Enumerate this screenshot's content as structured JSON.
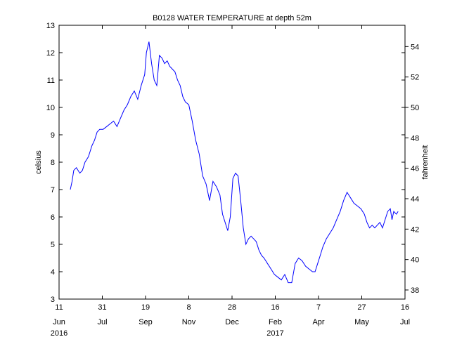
{
  "chart_data": {
    "type": "line",
    "title": "B0128 WATER TEMPERATURE at depth 52m",
    "ylabel_left": "celsius",
    "ylabel_right": "fahrenheit",
    "xlabel": "",
    "ylim": [
      3,
      13
    ],
    "ylim_right_fahrenheit": [
      37.4,
      55.4
    ],
    "x_range": [
      "2016-06-11",
      "2017-07-16"
    ],
    "grid": false,
    "line_color": "#0000ff",
    "y_ticks_left": [
      3,
      4,
      5,
      6,
      7,
      8,
      9,
      10,
      11,
      12,
      13
    ],
    "y_ticks_right": [
      38,
      40,
      42,
      44,
      46,
      48,
      50,
      52,
      54
    ],
    "x_ticks": [
      {
        "date": "2016-06-11",
        "day": "11",
        "month": "Jun",
        "year": "2016"
      },
      {
        "date": "2016-07-31",
        "day": "31",
        "month": "Jul",
        "year": ""
      },
      {
        "date": "2016-09-19",
        "day": "19",
        "month": "Sep",
        "year": ""
      },
      {
        "date": "2016-11-08",
        "day": "8",
        "month": "Nov",
        "year": ""
      },
      {
        "date": "2016-12-28",
        "day": "28",
        "month": "Dec",
        "year": ""
      },
      {
        "date": "2017-02-16",
        "day": "16",
        "month": "Feb",
        "year": "2017"
      },
      {
        "date": "2017-04-07",
        "day": "7",
        "month": "Apr",
        "year": ""
      },
      {
        "date": "2017-05-27",
        "day": "27",
        "month": "May",
        "year": ""
      },
      {
        "date": "2017-07-16",
        "day": "16",
        "month": "Jul",
        "year": ""
      }
    ],
    "series": [
      {
        "name": "",
        "x": [
          "2016-06-24",
          "2016-06-26",
          "2016-06-28",
          "2016-07-01",
          "2016-07-05",
          "2016-07-08",
          "2016-07-11",
          "2016-07-15",
          "2016-07-19",
          "2016-07-22",
          "2016-07-25",
          "2016-07-28",
          "2016-08-01",
          "2016-08-05",
          "2016-08-09",
          "2016-08-13",
          "2016-08-17",
          "2016-08-21",
          "2016-08-25",
          "2016-08-29",
          "2016-09-02",
          "2016-09-06",
          "2016-09-10",
          "2016-09-14",
          "2016-09-18",
          "2016-09-20",
          "2016-09-23",
          "2016-09-26",
          "2016-09-29",
          "2016-10-02",
          "2016-10-05",
          "2016-10-08",
          "2016-10-11",
          "2016-10-14",
          "2016-10-17",
          "2016-10-20",
          "2016-10-23",
          "2016-10-26",
          "2016-10-29",
          "2016-11-01",
          "2016-11-04",
          "2016-11-08",
          "2016-11-12",
          "2016-11-16",
          "2016-11-20",
          "2016-11-24",
          "2016-11-28",
          "2016-12-02",
          "2016-12-06",
          "2016-12-10",
          "2016-12-14",
          "2016-12-17",
          "2016-12-20",
          "2016-12-23",
          "2016-12-26",
          "2016-12-29",
          "2017-01-01",
          "2017-01-04",
          "2017-01-07",
          "2017-01-10",
          "2017-01-13",
          "2017-01-16",
          "2017-01-19",
          "2017-01-22",
          "2017-01-25",
          "2017-01-28",
          "2017-01-31",
          "2017-02-03",
          "2017-02-07",
          "2017-02-11",
          "2017-02-15",
          "2017-02-19",
          "2017-02-23",
          "2017-02-27",
          "2017-03-03",
          "2017-03-07",
          "2017-03-11",
          "2017-03-15",
          "2017-03-19",
          "2017-03-23",
          "2017-03-27",
          "2017-03-31",
          "2017-04-03",
          "2017-04-06",
          "2017-04-09",
          "2017-04-12",
          "2017-04-16",
          "2017-04-20",
          "2017-04-24",
          "2017-04-28",
          "2017-05-02",
          "2017-05-06",
          "2017-05-10",
          "2017-05-14",
          "2017-05-18",
          "2017-05-22",
          "2017-05-26",
          "2017-05-30",
          "2017-06-02",
          "2017-06-05",
          "2017-06-08",
          "2017-06-11",
          "2017-06-14",
          "2017-06-17",
          "2017-06-20",
          "2017-06-23",
          "2017-06-26",
          "2017-06-29",
          "2017-07-01",
          "2017-07-03",
          "2017-07-06",
          "2017-07-08"
        ],
        "y": [
          7.0,
          7.3,
          7.7,
          7.8,
          7.6,
          7.7,
          8.0,
          8.2,
          8.6,
          8.8,
          9.1,
          9.2,
          9.2,
          9.3,
          9.4,
          9.5,
          9.3,
          9.6,
          9.9,
          10.1,
          10.4,
          10.6,
          10.3,
          10.8,
          11.2,
          12.0,
          12.4,
          11.6,
          11.0,
          10.8,
          11.9,
          11.8,
          11.6,
          11.7,
          11.5,
          11.4,
          11.3,
          11.0,
          10.8,
          10.4,
          10.2,
          10.1,
          9.5,
          8.8,
          8.3,
          7.5,
          7.2,
          6.6,
          7.3,
          7.1,
          6.8,
          6.1,
          5.8,
          5.5,
          6.0,
          7.4,
          7.6,
          7.5,
          6.6,
          5.6,
          5.0,
          5.2,
          5.3,
          5.2,
          5.1,
          4.8,
          4.6,
          4.5,
          4.3,
          4.1,
          3.9,
          3.8,
          3.7,
          3.9,
          3.6,
          3.6,
          4.3,
          4.5,
          4.4,
          4.2,
          4.1,
          4.0,
          4.0,
          4.3,
          4.6,
          4.9,
          5.2,
          5.4,
          5.6,
          5.9,
          6.2,
          6.6,
          6.9,
          6.7,
          6.5,
          6.4,
          6.3,
          6.1,
          5.8,
          5.6,
          5.7,
          5.6,
          5.7,
          5.8,
          5.6,
          5.9,
          6.2,
          6.3,
          5.9,
          6.2,
          6.1,
          6.2
        ]
      }
    ]
  }
}
